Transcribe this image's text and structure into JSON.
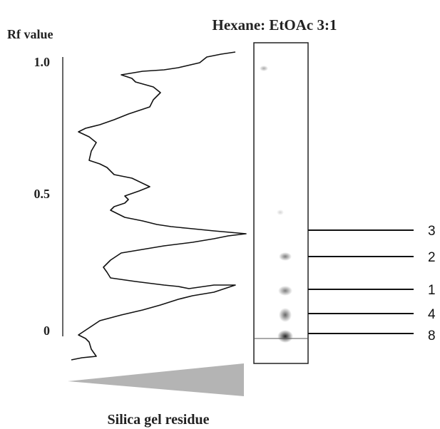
{
  "header": {
    "title": "Hexane: EtOAc 3:1"
  },
  "axis": {
    "label": "Rf value",
    "ticks": [
      "1.0",
      "0.5",
      "0"
    ]
  },
  "bands": [
    "3",
    "2",
    "1",
    "4",
    "8"
  ],
  "footer": {
    "label": "Silica gel residue"
  }
}
